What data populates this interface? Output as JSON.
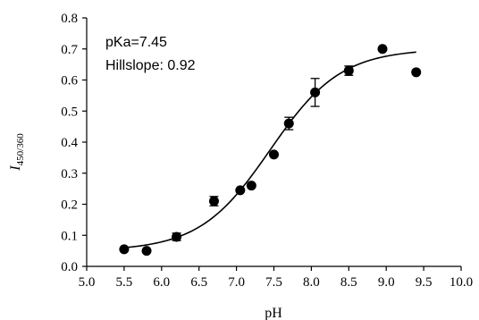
{
  "chart_data": {
    "type": "scatter",
    "xlabel": "pH",
    "ylabel": {
      "main": "I",
      "subscript": "450/360"
    },
    "xlim": [
      5.0,
      10.0
    ],
    "ylim": [
      0.0,
      0.8
    ],
    "xticks": [
      "5.0",
      "5.5",
      "6.0",
      "6.5",
      "7.0",
      "7.5",
      "8.0",
      "8.5",
      "9.0",
      "9.5",
      "10.0"
    ],
    "yticks": [
      "0.0",
      "0.1",
      "0.2",
      "0.3",
      "0.4",
      "0.5",
      "0.6",
      "0.7",
      "0.8"
    ],
    "grid": false,
    "annotations": [
      "pKa=7.45",
      "Hillslope: 0.92"
    ],
    "series": [
      {
        "marker": "filled-circle",
        "color": "#000000",
        "points": [
          {
            "x": 5.5,
            "y": 0.055,
            "err": 0
          },
          {
            "x": 5.8,
            "y": 0.05,
            "err": 0
          },
          {
            "x": 6.2,
            "y": 0.095,
            "err": 0.012
          },
          {
            "x": 6.7,
            "y": 0.21,
            "err": 0.015
          },
          {
            "x": 7.05,
            "y": 0.245,
            "err": 0
          },
          {
            "x": 7.2,
            "y": 0.26,
            "err": 0
          },
          {
            "x": 7.5,
            "y": 0.36,
            "err": 0
          },
          {
            "x": 7.7,
            "y": 0.46,
            "err": 0.02
          },
          {
            "x": 8.05,
            "y": 0.56,
            "err": 0.045
          },
          {
            "x": 8.5,
            "y": 0.63,
            "err": 0.015
          },
          {
            "x": 8.95,
            "y": 0.7,
            "err": 0
          },
          {
            "x": 9.4,
            "y": 0.625,
            "err": 0
          }
        ]
      }
    ],
    "fit": {
      "type": "line",
      "model": "hill",
      "bottom": 0.05,
      "top": 0.7,
      "pKa": 7.45,
      "hillslope": 0.92,
      "x_range": [
        5.5,
        9.4
      ],
      "color": "#000000"
    }
  }
}
